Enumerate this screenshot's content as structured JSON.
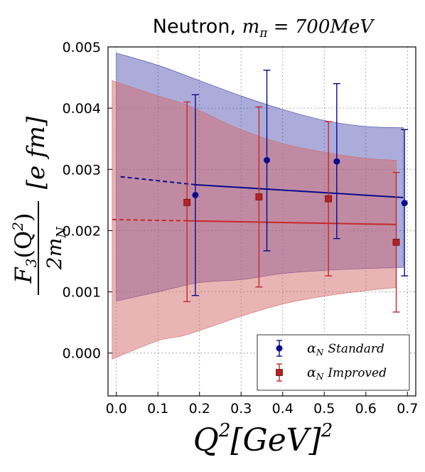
{
  "chart_data": {
    "type": "scatter",
    "title": {
      "prefix": "Neutron, ",
      "m": "m",
      "m_sub": "π",
      "value": " = 700",
      "unit": "MeV"
    },
    "xlabel": {
      "Q": "Q",
      "exp": "2",
      "unit": "[GeV]",
      "unit_exp": "2"
    },
    "ylabel": {
      "num": "F",
      "num_sub": "3",
      "num_arg": "(Q",
      "num_arg_exp": "2",
      "num_close": ")",
      "den": "2m",
      "den_sub": "N",
      "unit": "[e fm]"
    },
    "xlim": [
      -0.02,
      0.72
    ],
    "ylim": [
      -0.0007,
      0.005
    ],
    "xticks": [
      0.0,
      0.1,
      0.2,
      0.3,
      0.4,
      0.5,
      0.6,
      0.7
    ],
    "xtick_labels": [
      "0.0",
      "0.1",
      "0.2",
      "0.3",
      "0.4",
      "0.5",
      "0.6",
      "0.7"
    ],
    "yticks": [
      0.0,
      0.001,
      0.002,
      0.003,
      0.004,
      0.005
    ],
    "ytick_labels": [
      "0.000",
      "0.001",
      "0.002",
      "0.003",
      "0.004",
      "0.005"
    ],
    "grid": true,
    "legend_position": "lower-right",
    "series": [
      {
        "name_alpha": "α",
        "name_sub": "N",
        "name_text": "Standard",
        "color": "#0a0a8c",
        "fill": "#3a3aa6",
        "marker": "circle",
        "points": [
          {
            "x": 0.19,
            "y": 0.00258,
            "yerr_low": 0.00094,
            "yerr_high": 0.00422
          },
          {
            "x": 0.362,
            "y": 0.00315,
            "yerr_low": 0.00167,
            "yerr_high": 0.00462
          },
          {
            "x": 0.53,
            "y": 0.00313,
            "yerr_low": 0.00187,
            "yerr_high": 0.0044
          },
          {
            "x": 0.693,
            "y": 0.00245,
            "yerr_low": 0.00126,
            "yerr_high": 0.00365
          }
        ],
        "fit_dashed": {
          "x": [
            0.01,
            0.19
          ],
          "y": [
            0.00288,
            0.00275
          ]
        },
        "fit_solid": {
          "x": [
            0.19,
            0.69
          ],
          "y": [
            0.00275,
            0.00254
          ]
        },
        "band": {
          "x": [
            0.0,
            0.1,
            0.2,
            0.3,
            0.4,
            0.5,
            0.6,
            0.69
          ],
          "upper": [
            0.0049,
            0.0047,
            0.00445,
            0.0042,
            0.00398,
            0.0038,
            0.0037,
            0.00368
          ],
          "lower": [
            0.00085,
            0.001,
            0.00115,
            0.0012,
            0.0013,
            0.00135,
            0.00138,
            0.0014
          ]
        }
      },
      {
        "name_alpha": "α",
        "name_sub": "N",
        "name_text": "Improved",
        "color": "#c62828",
        "fill": "#d46a6a",
        "marker": "square",
        "points": [
          {
            "x": 0.17,
            "y": 0.00246,
            "yerr_low": 0.00084,
            "yerr_high": 0.0041
          },
          {
            "x": 0.343,
            "y": 0.00255,
            "yerr_low": 0.00108,
            "yerr_high": 0.00402
          },
          {
            "x": 0.51,
            "y": 0.00252,
            "yerr_low": 0.00126,
            "yerr_high": 0.00378
          },
          {
            "x": 0.673,
            "y": 0.00181,
            "yerr_low": 0.00067,
            "yerr_high": 0.00295
          }
        ],
        "fit_dashed": {
          "x": [
            -0.01,
            0.17
          ],
          "y": [
            0.00218,
            0.00216
          ]
        },
        "fit_solid": {
          "x": [
            0.17,
            0.673
          ],
          "y": [
            0.00216,
            0.0021
          ]
        },
        "band": {
          "x": [
            -0.01,
            0.1,
            0.17,
            0.3,
            0.4,
            0.5,
            0.6,
            0.673
          ],
          "upper": [
            0.00445,
            0.0042,
            0.00405,
            0.00365,
            0.00342,
            0.00328,
            0.00318,
            0.00315
          ],
          "lower": [
            -0.0001,
            0.0002,
            0.0003,
            0.0006,
            0.0008,
            0.00093,
            0.00102,
            0.00107
          ]
        }
      }
    ]
  }
}
